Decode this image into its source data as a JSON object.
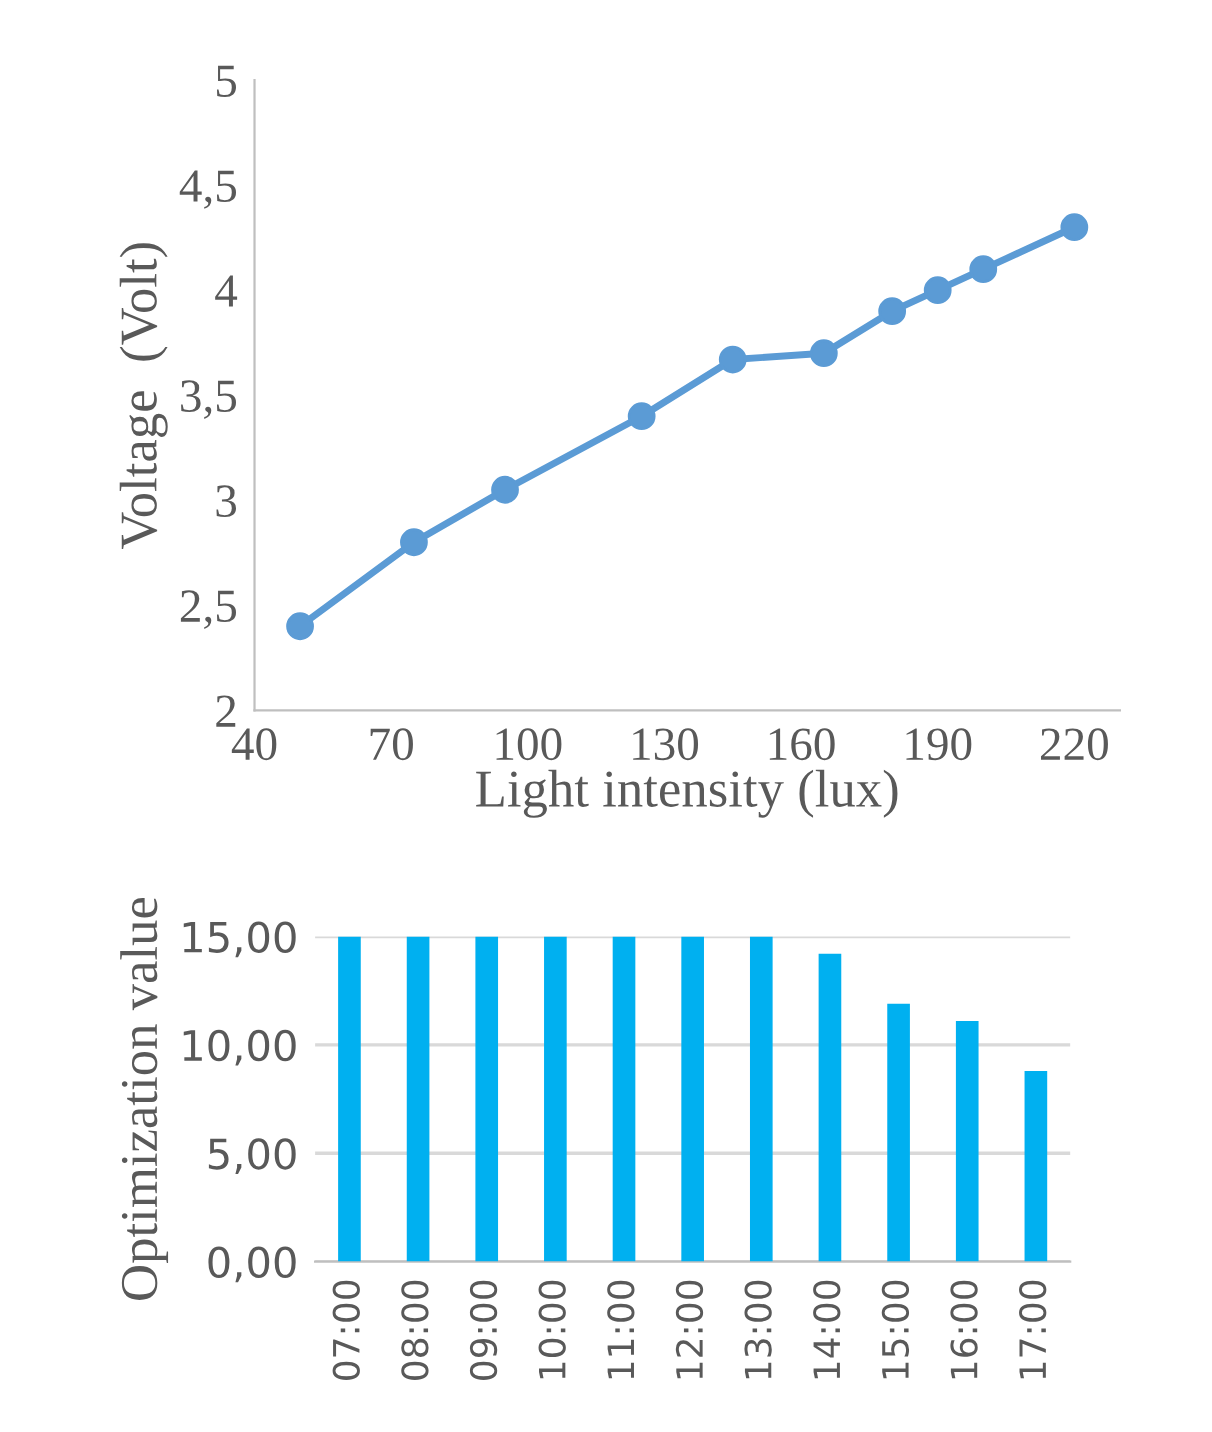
{
  "chart_data": [
    {
      "type": "line",
      "xlabel": "Light intensity (lux)",
      "ylabel": "Voltage  (Volt)",
      "x": [
        50,
        75,
        95,
        125,
        145,
        165,
        180,
        190,
        200,
        220
      ],
      "series": [
        {
          "color": "#5b9bd5",
          "values": [
            2.4,
            2.8,
            3.05,
            3.4,
            3.67,
            3.7,
            3.9,
            4.0,
            4.1,
            4.3
          ]
        }
      ],
      "xlim": [
        40,
        230
      ],
      "xticks": [
        40,
        70,
        100,
        130,
        160,
        190,
        220
      ],
      "ylim": [
        2,
        5
      ],
      "yticks": [
        {
          "value": 2,
          "label": "2"
        },
        {
          "value": 2.5,
          "label": "2,5"
        },
        {
          "value": 3,
          "label": "3"
        },
        {
          "value": 3.5,
          "label": "3,5"
        },
        {
          "value": 4,
          "label": "4"
        },
        {
          "value": 4.5,
          "label": "4,5"
        },
        {
          "value": 5,
          "label": "5"
        }
      ],
      "marker": "circle",
      "line_style": "solid",
      "grid": false,
      "legend": false
    },
    {
      "type": "bar",
      "ylabel": "Optimization value",
      "categories": [
        "07:00",
        "08:00",
        "09:00",
        "10:00",
        "11:00",
        "12:00",
        "13:00",
        "14:00",
        "15:00",
        "16:00",
        "17:00"
      ],
      "series": [
        {
          "color": "#00b0f0",
          "values": [
            15,
            15,
            15,
            15,
            15,
            15,
            15,
            14.2,
            11.9,
            11.1,
            8.8
          ]
        }
      ],
      "ylim": [
        0,
        15
      ],
      "yticks": [
        {
          "value": 0,
          "label": "0,00"
        },
        {
          "value": 5,
          "label": "5,00"
        },
        {
          "value": 10,
          "label": "10,00"
        },
        {
          "value": 15,
          "label": "15,00"
        }
      ],
      "grid": "y",
      "legend": false
    }
  ]
}
